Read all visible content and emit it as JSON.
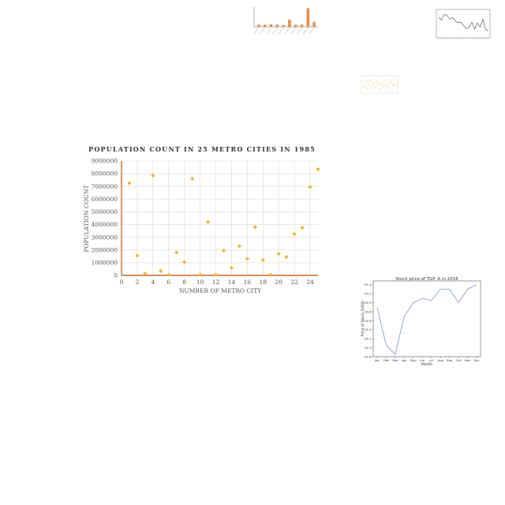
{
  "colors": {
    "orange": "#f08a3c",
    "gold": "#f5b621",
    "axis": "#c26b2a",
    "grid": "#d9d9d9",
    "line": "#6b7fd6"
  },
  "chart_data": [
    {
      "id": "main-scatter",
      "type": "scatter",
      "title": "POPULATION COUNT IN 25 METRO CITIES IN 1985",
      "xlabel": "NUMBER OF METRO CITY",
      "ylabel": "POPULATION COUNT",
      "xlim": [
        0,
        25
      ],
      "ylim": [
        0,
        9000000
      ],
      "xticks": [
        "0",
        "2",
        "4",
        "6",
        "8",
        "10",
        "12",
        "14",
        "16",
        "18",
        "20",
        "22",
        "24"
      ],
      "yticks": [
        "0",
        "1000000",
        "2000000",
        "3000000",
        "4000000",
        "5000000",
        "6000000",
        "7000000",
        "8000000",
        "9000000"
      ],
      "grid": true,
      "x": [
        1,
        2,
        3,
        4,
        5,
        6,
        7,
        8,
        9,
        10,
        11,
        12,
        13,
        14,
        15,
        16,
        17,
        18,
        19,
        20,
        21,
        22,
        23,
        24,
        25
      ],
      "y": [
        7250000,
        1550000,
        150000,
        7850000,
        350000,
        50000,
        1800000,
        1050000,
        7600000,
        50000,
        4200000,
        50000,
        1950000,
        600000,
        2300000,
        1300000,
        3800000,
        1200000,
        50000,
        1700000,
        1450000,
        3250000,
        3750000,
        6950000,
        8350000
      ]
    },
    {
      "id": "stock-line",
      "type": "line",
      "title": "Stock price of TGP_A in 2016",
      "xlabel": "Month",
      "ylabel": "Price of Stock (USD)",
      "categories": [
        "Jan",
        "Feb",
        "Mar",
        "Apr",
        "May",
        "Jun",
        "Jul",
        "Aug",
        "Sep",
        "Oct",
        "Nov",
        "Dec"
      ],
      "yticks": [
        "23.8",
        "24.0",
        "24.2",
        "24.4",
        "24.6",
        "24.8",
        "25.0",
        "25.2",
        "25.4"
      ],
      "ylim": [
        23.8,
        25.45
      ],
      "values": [
        24.9,
        24.05,
        23.85,
        24.7,
        25.0,
        25.1,
        25.05,
        25.3,
        25.3,
        25.0,
        25.3,
        25.4
      ],
      "grid": false
    },
    {
      "id": "top-bar",
      "type": "bar",
      "values": [
        1,
        1,
        1.2,
        1,
        0.8,
        3.3,
        1,
        1,
        8.5,
        2.2
      ],
      "ylim": [
        0,
        9
      ]
    },
    {
      "id": "top-right-line",
      "type": "line",
      "values": [
        8,
        7.2,
        9,
        8.6,
        7.4,
        7.9,
        6.8,
        6.3,
        6.5,
        5.4,
        4.4,
        4.8,
        6.5,
        4.3,
        6.2,
        5,
        7.4,
        4.1,
        3.8
      ],
      "ylim": [
        2,
        10
      ]
    },
    {
      "id": "small-scatter",
      "type": "scatter",
      "x": [
        1,
        2,
        3,
        4,
        5,
        6,
        7,
        8,
        9,
        10,
        11,
        12,
        13,
        14,
        15,
        16,
        17,
        18,
        19,
        20
      ],
      "y": [
        3,
        7,
        2,
        5,
        8,
        4,
        6,
        3,
        7,
        5,
        2,
        6,
        4,
        8,
        5,
        3,
        6,
        7,
        4,
        5
      ],
      "xlim": [
        0,
        21
      ],
      "ylim": [
        0,
        10
      ]
    }
  ]
}
